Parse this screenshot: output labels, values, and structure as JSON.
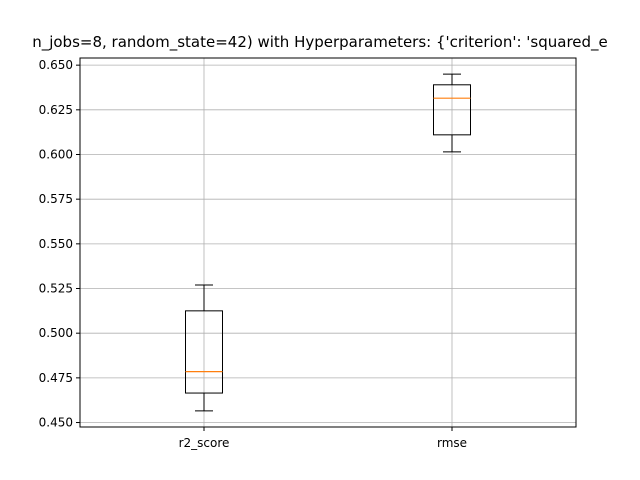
{
  "chart_data": {
    "type": "box",
    "title": "n_jobs=8, random_state=42) with Hyperparameters: {'criterion': 'squared_e",
    "xlabel": "",
    "ylabel": "",
    "categories": [
      "r2_score",
      "rmse"
    ],
    "boxes": [
      {
        "category": "r2_score",
        "whisker_low": 0.4565,
        "q1": 0.4665,
        "median": 0.4785,
        "q3": 0.5125,
        "whisker_high": 0.527
      },
      {
        "category": "rmse",
        "whisker_low": 0.6015,
        "q1": 0.611,
        "median": 0.6315,
        "q3": 0.639,
        "whisker_high": 0.645
      }
    ],
    "ylim": [
      0.4475,
      0.654
    ],
    "yticks": [
      0.45,
      0.475,
      0.5,
      0.525,
      0.55,
      0.575,
      0.6,
      0.625,
      0.65
    ],
    "ytick_labels": [
      "0.450",
      "0.475",
      "0.500",
      "0.525",
      "0.550",
      "0.575",
      "0.600",
      "0.625",
      "0.650"
    ],
    "grid": true,
    "box_color": "#000000",
    "median_color": "#ff7f0e",
    "grid_color": "#b0b0b0"
  }
}
